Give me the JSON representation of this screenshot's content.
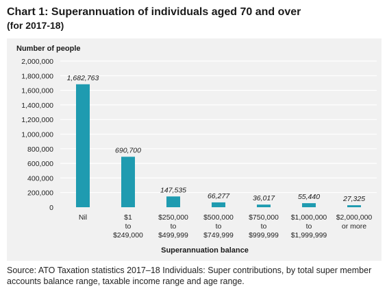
{
  "title": "Chart 1: Superannuation of individuals aged 70 and over",
  "subtitle": "(for 2017-18)",
  "source": "Source: ATO Taxation statistics 2017–18 Individuals: Super contributions, by total super member accounts balance range, taxable income range and age range.",
  "colors": {
    "bar": "#1f9bb0",
    "panel": "#f1f1f1",
    "grid": "#ffffff"
  },
  "chart_data": {
    "type": "bar",
    "ylabel": "Number of people",
    "xlabel": "Superannuation balance",
    "ylim": [
      0,
      2000000
    ],
    "yticks": [
      "0",
      "200,000",
      "400,000",
      "600,000",
      "800,000",
      "1,000,000",
      "1,200,000",
      "1,400,000",
      "1,600,000",
      "1,800,000",
      "2,000,000"
    ],
    "ytick_values": [
      0,
      200000,
      400000,
      600000,
      800000,
      1000000,
      1200000,
      1400000,
      1600000,
      1800000,
      2000000
    ],
    "categories": [
      [
        "Nil"
      ],
      [
        "$1",
        "to",
        "$249,000"
      ],
      [
        "$250,000",
        "to",
        "$499,999"
      ],
      [
        "$500,000",
        "to",
        "$749,999"
      ],
      [
        "$750,000",
        "to",
        "$999,999"
      ],
      [
        "$1,000,000",
        "to",
        "$1,999,999"
      ],
      [
        "$2,000,000",
        "or more"
      ]
    ],
    "values": [
      1682763,
      690700,
      147535,
      66277,
      36017,
      55440,
      27325
    ],
    "data_labels": [
      "1,682,763",
      "690,700",
      "147,535",
      "66,277",
      "36,017",
      "55,440",
      "27,325"
    ],
    "grid": true
  }
}
